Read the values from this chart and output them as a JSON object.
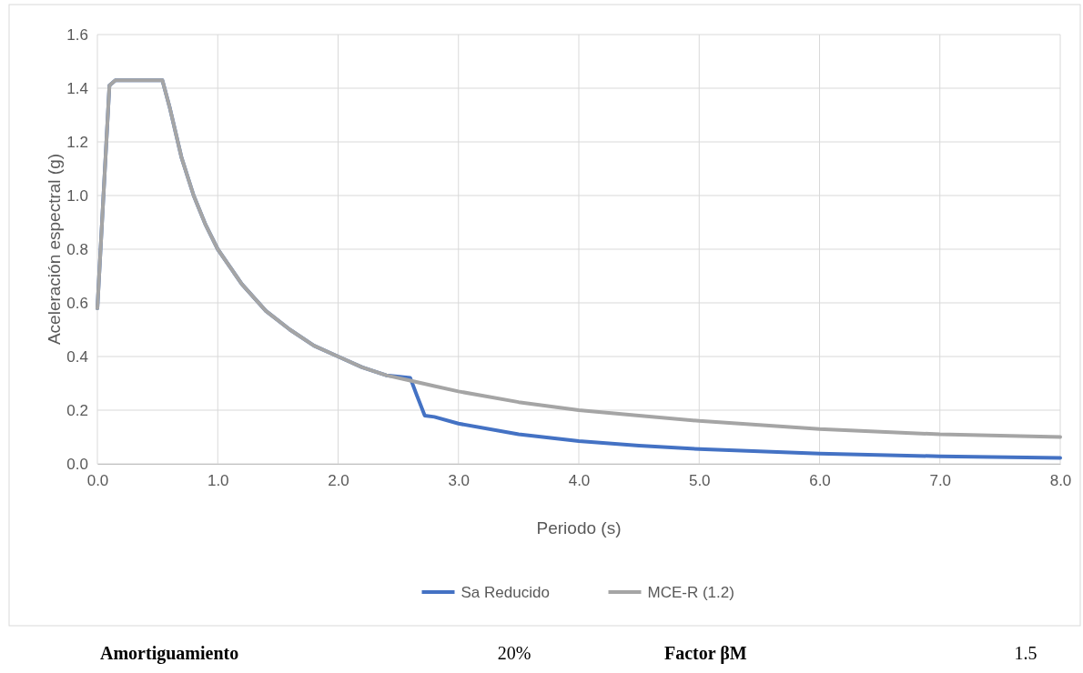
{
  "chart_data": {
    "type": "line",
    "xlabel": "Periodo (s)",
    "ylabel": "Aceleración espectral (g)",
    "xlim": [
      0,
      8
    ],
    "ylim": [
      0,
      1.6
    ],
    "xticks": [
      {
        "value": 0,
        "label": "0.0"
      },
      {
        "value": 1,
        "label": "1.0"
      },
      {
        "value": 2,
        "label": "2.0"
      },
      {
        "value": 3,
        "label": "3.0"
      },
      {
        "value": 4,
        "label": "4.0"
      },
      {
        "value": 5,
        "label": "5.0"
      },
      {
        "value": 6,
        "label": "6.0"
      },
      {
        "value": 7,
        "label": "7.0"
      },
      {
        "value": 8,
        "label": "8.0"
      }
    ],
    "yticks": [
      {
        "value": 0,
        "label": "0.0"
      },
      {
        "value": 0.2,
        "label": "0.2"
      },
      {
        "value": 0.4,
        "label": "0.4"
      },
      {
        "value": 0.6,
        "label": "0.6"
      },
      {
        "value": 0.8,
        "label": "0.8"
      },
      {
        "value": 1,
        "label": "1.0"
      },
      {
        "value": 1.2,
        "label": "1.2"
      },
      {
        "value": 1.4,
        "label": "1.4"
      },
      {
        "value": 1.6,
        "label": "1.6"
      }
    ],
    "grid": true,
    "legend": "bottom",
    "marker": "none",
    "line_style": "solid",
    "series": [
      {
        "name": "Sa Reducido",
        "color": "#4472c4",
        "x": [
          0,
          0.1,
          0.15,
          0.3,
          0.54,
          0.6,
          0.7,
          0.8,
          0.9,
          1,
          1.2,
          1.4,
          1.6,
          1.8,
          2,
          2.2,
          2.4,
          2.6,
          2.65,
          2.72,
          2.8,
          3,
          3.5,
          4,
          4.5,
          5,
          6,
          7,
          8
        ],
        "values": [
          0.58,
          1.41,
          1.43,
          1.43,
          1.43,
          1.33,
          1.14,
          1,
          0.89,
          0.8,
          0.67,
          0.57,
          0.5,
          0.44,
          0.4,
          0.36,
          0.33,
          0.32,
          0.26,
          0.18,
          0.175,
          0.15,
          0.11,
          0.085,
          0.068,
          0.055,
          0.038,
          0.028,
          0.022
        ]
      },
      {
        "name": "MCE-R (1.2)",
        "color": "#a5a5a5",
        "x": [
          0,
          0.1,
          0.15,
          0.3,
          0.54,
          0.6,
          0.7,
          0.8,
          0.9,
          1,
          1.2,
          1.4,
          1.6,
          1.8,
          2,
          2.2,
          2.4,
          2.6,
          2.8,
          3,
          3.5,
          4,
          4.5,
          5,
          6,
          7,
          8
        ],
        "values": [
          0.58,
          1.41,
          1.43,
          1.43,
          1.43,
          1.33,
          1.14,
          1,
          0.89,
          0.8,
          0.67,
          0.57,
          0.5,
          0.44,
          0.4,
          0.36,
          0.33,
          0.31,
          0.29,
          0.27,
          0.23,
          0.2,
          0.18,
          0.16,
          0.13,
          0.11,
          0.1
        ]
      }
    ],
    "annotations": [
      "Amortiguamiento",
      "20%",
      "Factor βM",
      "1.5"
    ]
  }
}
